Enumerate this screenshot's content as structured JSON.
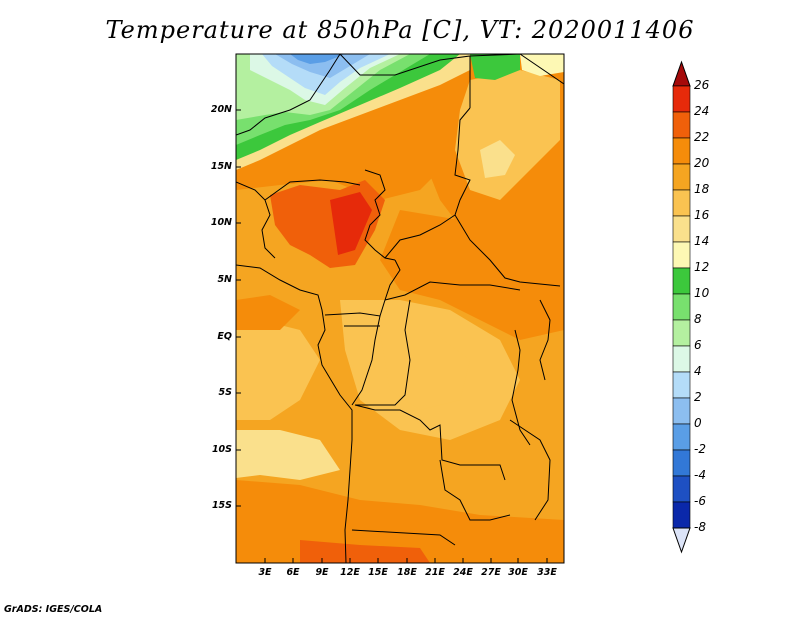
{
  "title": "Temperature at 850hPa [C], VT: 2020011406",
  "credit": "GrADS: IGES/COLA",
  "map": {
    "lat_labels": [
      "20N",
      "15N",
      "10N",
      "5N",
      "EQ",
      "5S",
      "10S",
      "15S"
    ],
    "lon_labels": [
      "3E",
      "6E",
      "9E",
      "12E",
      "15E",
      "18E",
      "21E",
      "24E",
      "27E",
      "30E",
      "33E"
    ]
  },
  "colorbar": {
    "levels": [
      "26",
      "24",
      "22",
      "20",
      "18",
      "16",
      "14",
      "12",
      "10",
      "8",
      "6",
      "4",
      "2",
      "0",
      "-2",
      "-4",
      "-6",
      "-8"
    ],
    "colors": [
      "#a50a0a",
      "#e62a0a",
      "#f0600a",
      "#f58c0a",
      "#f5a521",
      "#fac351",
      "#fae08c",
      "#fdf8b4",
      "#3cc83c",
      "#78e06e",
      "#b4f0a0",
      "#dcf8e6",
      "#b4dcf8",
      "#8cbef0",
      "#5a9ee6",
      "#3278d7",
      "#1e50c3",
      "#0a28aa",
      "#001478",
      "#dce4f8"
    ]
  }
}
